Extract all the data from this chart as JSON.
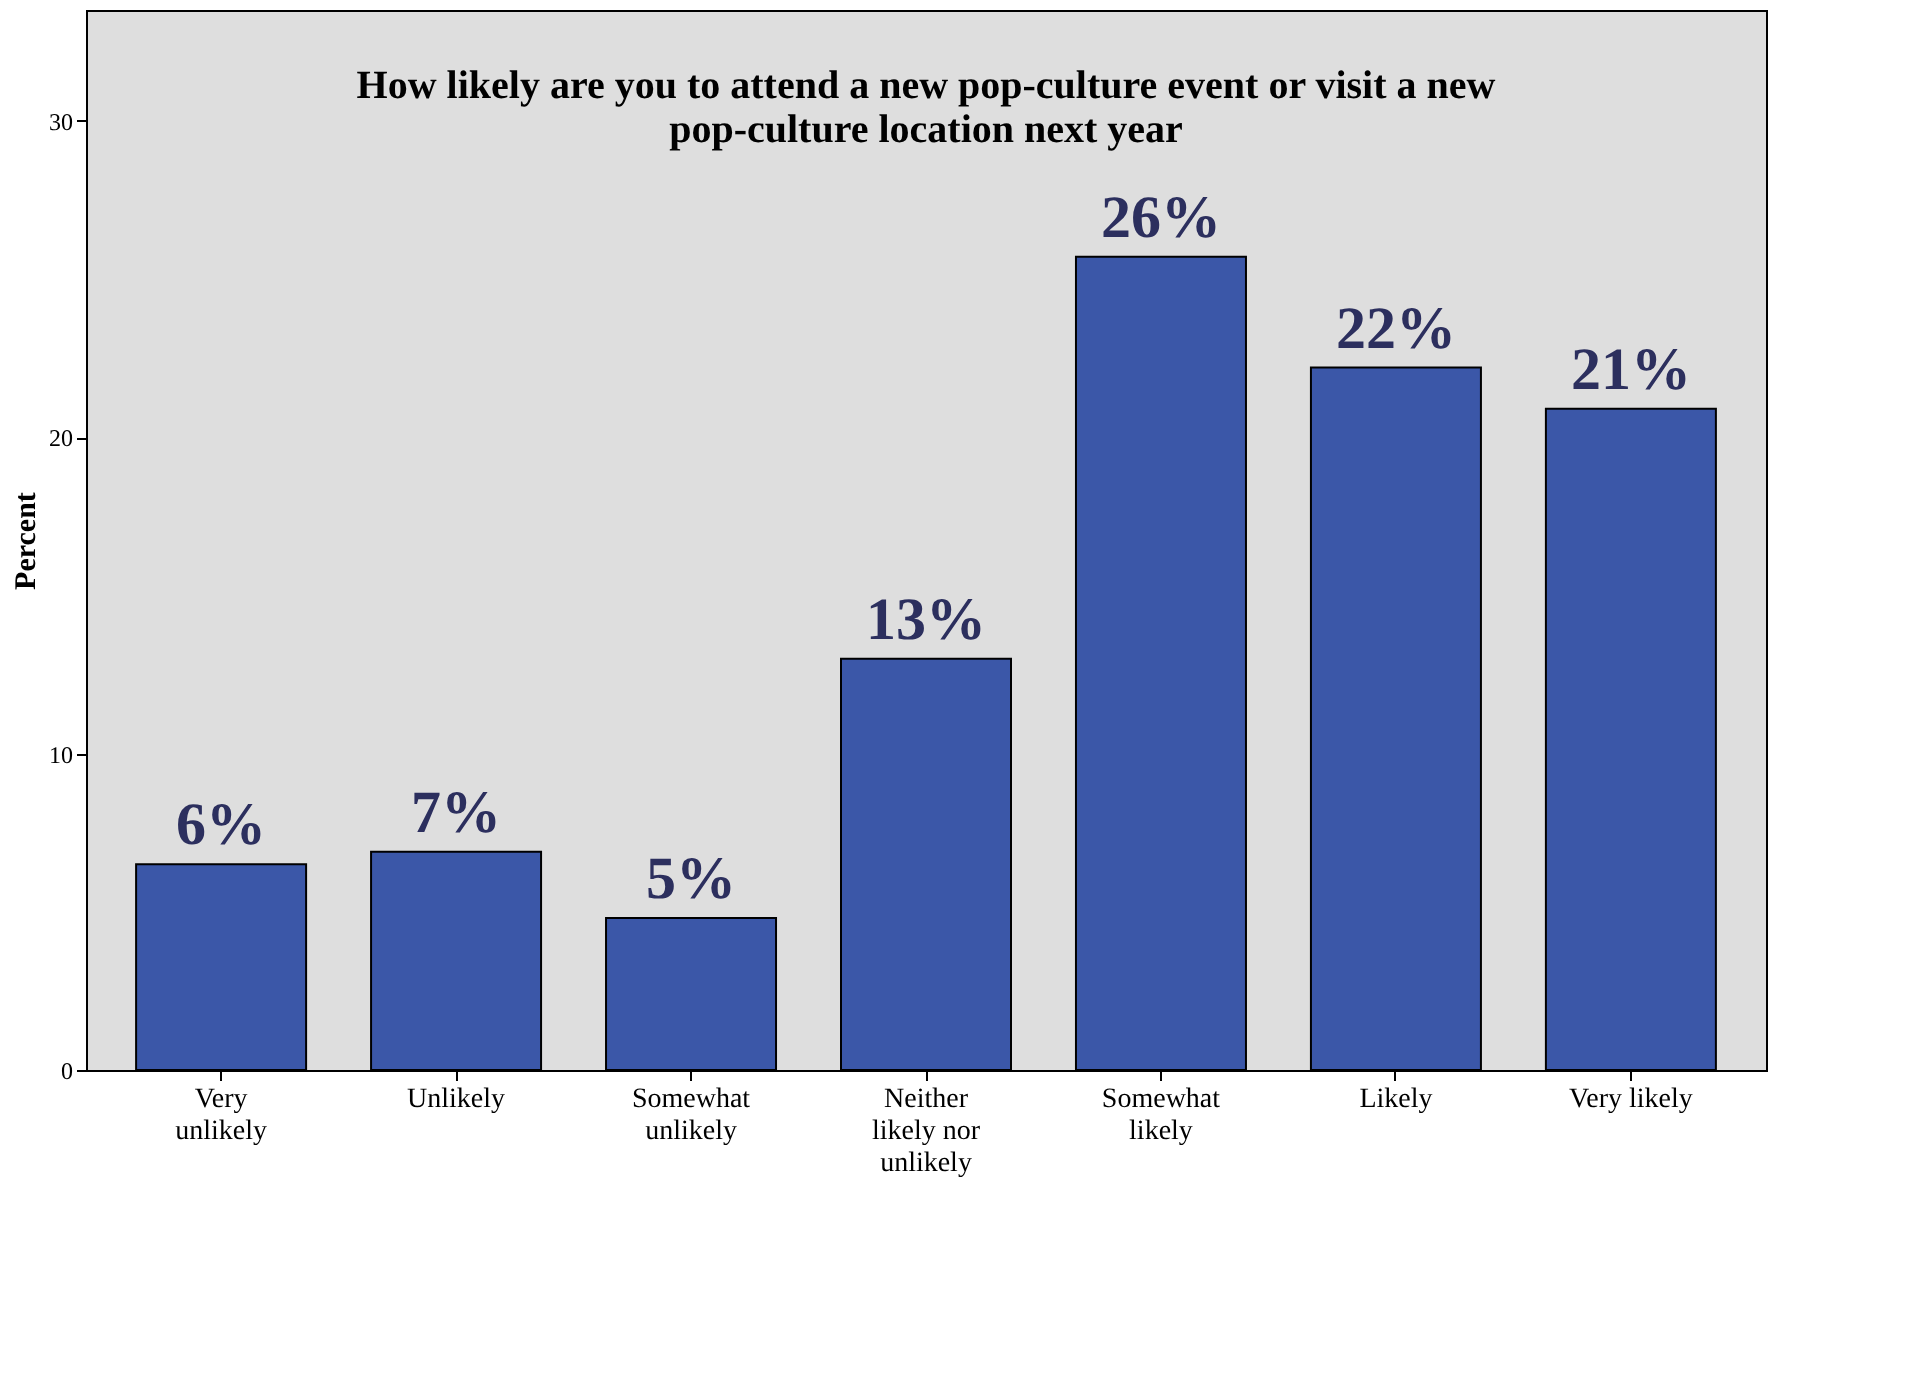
{
  "chart_data": {
    "type": "bar",
    "title": "How likely are you to attend a new pop-culture event or visit a new pop-culture location next year",
    "ylabel": "Percent",
    "categories": [
      "Very unlikely",
      "Unlikely",
      "Somewhat unlikely",
      "Neither likely nor unlikely",
      "Somewhat likely",
      "Likely",
      "Very likely"
    ],
    "values": [
      6.5,
      6.9,
      4.8,
      13.0,
      25.7,
      22.2,
      20.9
    ],
    "value_labels": [
      "6%",
      "7%",
      "5%",
      "13%",
      "26%",
      "22%",
      "21%"
    ],
    "color": "#3b57a8",
    "ylim": [
      0,
      33.5
    ],
    "yticks": [
      0,
      10,
      20,
      30
    ],
    "grid": false
  }
}
